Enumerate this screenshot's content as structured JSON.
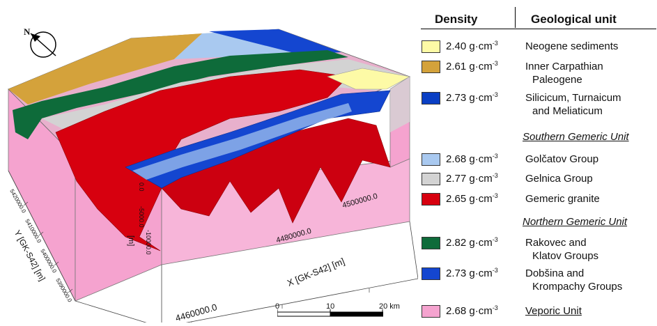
{
  "north_label": "N",
  "axes": {
    "x_label": "X [GK-S42] [m]",
    "y_label": "Y [GK-S42] [m]",
    "z_label": "[m]",
    "x_ticks": [
      "4460000.0",
      "4480000.0",
      "4500000.0"
    ],
    "y_ticks": [
      "5420000.0",
      "5410000.0",
      "5400000.0",
      "5390000.0"
    ],
    "z_ticks": [
      "0.0",
      "-5000.0",
      "-10000.0"
    ]
  },
  "scale_bar": {
    "labels": [
      "0",
      "10",
      "20 km"
    ]
  },
  "legend": {
    "density_header": "Density",
    "unit_header": "Geological unit",
    "density_unit": "g·cm",
    "density_exp": "-3",
    "group_southern": "Southern Gemeric Unit",
    "group_northern": "Northern Gemeric Unit",
    "items": [
      {
        "density": "2.40",
        "color": "#fdfaa6",
        "unit_line1": "Neogene sediments",
        "unit_line2": ""
      },
      {
        "density": "2.61",
        "color": "#d4a23b",
        "unit_line1": "Inner Carpathian",
        "unit_line2": "Paleogene"
      },
      {
        "density": "2.73",
        "color": "#0a3fc4",
        "unit_line1": "Silicicum, Turnaicum",
        "unit_line2": "and Meliaticum"
      },
      {
        "density": "2.68",
        "color": "#a9c9f0",
        "unit_line1": "Golčatov Group",
        "unit_line2": ""
      },
      {
        "density": "2.77",
        "color": "#d3d3d3",
        "unit_line1": "Gelnica Group",
        "unit_line2": ""
      },
      {
        "density": "2.65",
        "color": "#d7000f",
        "unit_line1": "Gemeric granite",
        "unit_line2": ""
      },
      {
        "density": "2.82",
        "color": "#0e6b3a",
        "unit_line1": "Rakovec and",
        "unit_line2": "Klatov Groups"
      },
      {
        "density": "2.73",
        "color": "#1446d0",
        "unit_line1": "Dobšina and",
        "unit_line2": "Krompachy Groups"
      },
      {
        "density": "2.68",
        "color": "#f5a3cf",
        "unit_line1": "Veporic Unit",
        "unit_line2": ""
      }
    ]
  }
}
